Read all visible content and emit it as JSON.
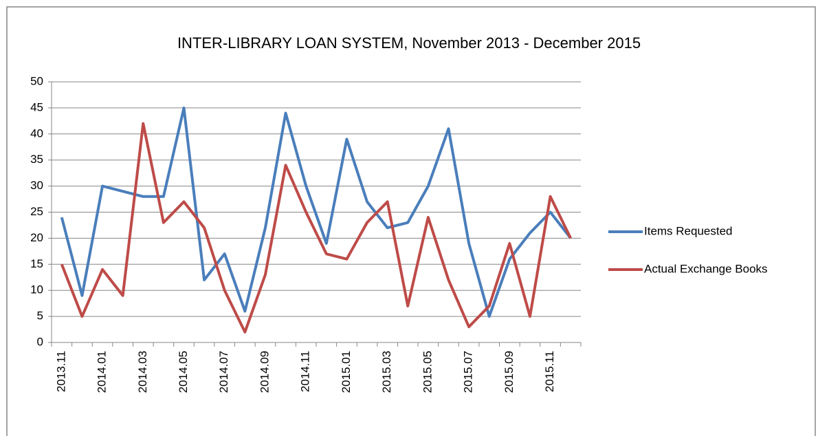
{
  "chart_data": {
    "type": "line",
    "title": "INTER-LIBRARY LOAN SYSTEM, November 2013 - December 2015",
    "categories": [
      "2013.11",
      null,
      "2014.01",
      null,
      "2014.03",
      null,
      "2014.05",
      null,
      "2014.07",
      null,
      "2014.09",
      null,
      "2014.11",
      null,
      "2015.01",
      null,
      "2015.03",
      null,
      "2015.05",
      null,
      "2015.07",
      null,
      "2015.09",
      null,
      "2015.11",
      null
    ],
    "series": [
      {
        "name": "Items Requested",
        "color": "#4a7ebb",
        "values": [
          24,
          9,
          30,
          29,
          28,
          28,
          45,
          12,
          17,
          6,
          22,
          44,
          30,
          19,
          39,
          27,
          22,
          23,
          30,
          41,
          19,
          5,
          16,
          21,
          25,
          20
        ]
      },
      {
        "name": "Actual Exchange Books",
        "color": "#be4b48",
        "values": [
          15,
          5,
          14,
          9,
          42,
          23,
          27,
          22,
          10,
          2,
          13,
          34,
          25,
          17,
          16,
          23,
          27,
          7,
          24,
          12,
          3,
          7,
          19,
          5,
          28,
          20
        ]
      }
    ],
    "ylim": [
      0,
      50
    ],
    "yticks": [
      0,
      5,
      10,
      15,
      20,
      25,
      30,
      35,
      40,
      45,
      50
    ],
    "grid": true,
    "legend": "right"
  }
}
